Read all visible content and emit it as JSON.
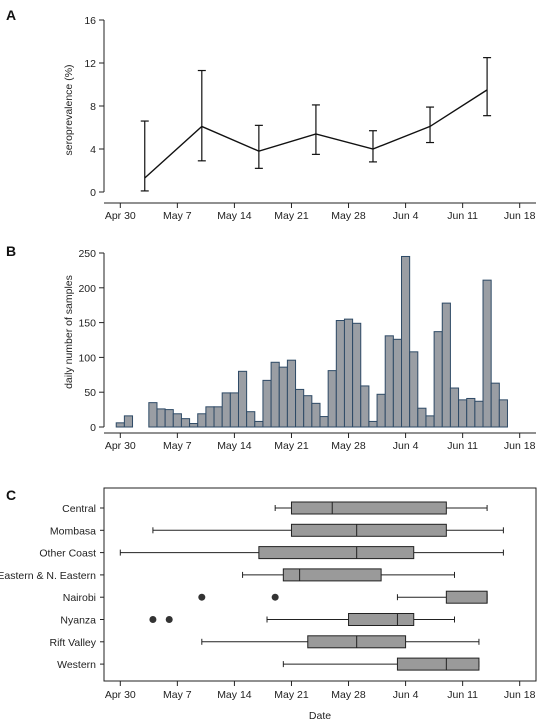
{
  "chart_data": [
    {
      "panel_label": "A",
      "type": "line",
      "ylabel": "seroprevalence (%)",
      "xlabel": "",
      "ylim": [
        0,
        16
      ],
      "yticks": [
        0,
        4,
        8,
        12,
        16
      ],
      "x_tick_labels": [
        "Apr 30",
        "May 7",
        "May 14",
        "May 21",
        "May 28",
        "Jun 4",
        "Jun 11",
        "Jun 18"
      ],
      "x_tick_dates": [
        "2020-04-30",
        "2020-05-07",
        "2020-05-14",
        "2020-05-21",
        "2020-05-28",
        "2020-06-04",
        "2020-06-11",
        "2020-06-18"
      ],
      "xlim": [
        "2020-04-28",
        "2020-06-20"
      ],
      "grid": false,
      "points": [
        {
          "x": "2020-05-03",
          "y": 1.3,
          "lo": 0.1,
          "hi": 6.6
        },
        {
          "x": "2020-05-10",
          "y": 6.1,
          "lo": 2.9,
          "hi": 11.3
        },
        {
          "x": "2020-05-17",
          "y": 3.8,
          "lo": 2.2,
          "hi": 6.2
        },
        {
          "x": "2020-05-24",
          "y": 5.4,
          "lo": 3.5,
          "hi": 8.1
        },
        {
          "x": "2020-05-31",
          "y": 4.0,
          "lo": 2.8,
          "hi": 5.7
        },
        {
          "x": "2020-06-07",
          "y": 6.1,
          "lo": 4.6,
          "hi": 7.9
        },
        {
          "x": "2020-06-14",
          "y": 9.5,
          "lo": 7.1,
          "hi": 12.5
        }
      ]
    },
    {
      "panel_label": "B",
      "type": "bar",
      "ylabel": "daily number of samples",
      "xlabel": "",
      "ylim": [
        0,
        250
      ],
      "yticks": [
        0,
        50,
        100,
        150,
        200,
        250
      ],
      "x_tick_labels": [
        "Apr 30",
        "May 7",
        "May 14",
        "May 21",
        "May 28",
        "Jun 4",
        "Jun 11",
        "Jun 18"
      ],
      "x_tick_dates": [
        "2020-04-30",
        "2020-05-07",
        "2020-05-14",
        "2020-05-21",
        "2020-05-28",
        "2020-06-04",
        "2020-06-11",
        "2020-06-18"
      ],
      "xlim": [
        "2020-04-28",
        "2020-06-20"
      ],
      "grid": false,
      "bars": [
        {
          "x": "2020-04-30",
          "y": 6
        },
        {
          "x": "2020-05-01",
          "y": 16
        },
        {
          "x": "2020-05-04",
          "y": 35
        },
        {
          "x": "2020-05-05",
          "y": 26
        },
        {
          "x": "2020-05-06",
          "y": 25
        },
        {
          "x": "2020-05-07",
          "y": 19
        },
        {
          "x": "2020-05-08",
          "y": 12
        },
        {
          "x": "2020-05-09",
          "y": 5
        },
        {
          "x": "2020-05-10",
          "y": 19
        },
        {
          "x": "2020-05-11",
          "y": 29
        },
        {
          "x": "2020-05-12",
          "y": 29
        },
        {
          "x": "2020-05-13",
          "y": 49
        },
        {
          "x": "2020-05-14",
          "y": 49
        },
        {
          "x": "2020-05-15",
          "y": 80
        },
        {
          "x": "2020-05-16",
          "y": 22
        },
        {
          "x": "2020-05-17",
          "y": 8
        },
        {
          "x": "2020-05-18",
          "y": 67
        },
        {
          "x": "2020-05-19",
          "y": 93
        },
        {
          "x": "2020-05-20",
          "y": 86
        },
        {
          "x": "2020-05-21",
          "y": 96
        },
        {
          "x": "2020-05-22",
          "y": 54
        },
        {
          "x": "2020-05-23",
          "y": 45
        },
        {
          "x": "2020-05-24",
          "y": 34
        },
        {
          "x": "2020-05-25",
          "y": 15
        },
        {
          "x": "2020-05-26",
          "y": 81
        },
        {
          "x": "2020-05-27",
          "y": 153
        },
        {
          "x": "2020-05-28",
          "y": 155
        },
        {
          "x": "2020-05-29",
          "y": 149
        },
        {
          "x": "2020-05-30",
          "y": 59
        },
        {
          "x": "2020-05-31",
          "y": 8
        },
        {
          "x": "2020-06-01",
          "y": 47
        },
        {
          "x": "2020-06-02",
          "y": 131
        },
        {
          "x": "2020-06-03",
          "y": 126
        },
        {
          "x": "2020-06-04",
          "y": 245
        },
        {
          "x": "2020-06-05",
          "y": 108
        },
        {
          "x": "2020-06-06",
          "y": 27
        },
        {
          "x": "2020-06-07",
          "y": 16
        },
        {
          "x": "2020-06-08",
          "y": 137
        },
        {
          "x": "2020-06-09",
          "y": 178
        },
        {
          "x": "2020-06-10",
          "y": 56
        },
        {
          "x": "2020-06-11",
          "y": 39
        },
        {
          "x": "2020-06-12",
          "y": 41
        },
        {
          "x": "2020-06-13",
          "y": 37
        },
        {
          "x": "2020-06-14",
          "y": 211
        },
        {
          "x": "2020-06-15",
          "y": 63
        },
        {
          "x": "2020-06-16",
          "y": 39
        }
      ]
    },
    {
      "panel_label": "C",
      "type": "box",
      "ylabel": "",
      "xlabel": "Date",
      "x_tick_labels": [
        "Apr 30",
        "May 7",
        "May 14",
        "May 21",
        "May 28",
        "Jun 4",
        "Jun 11",
        "Jun 18"
      ],
      "x_tick_dates": [
        "2020-04-30",
        "2020-05-07",
        "2020-05-14",
        "2020-05-21",
        "2020-05-28",
        "2020-06-04",
        "2020-06-11",
        "2020-06-18"
      ],
      "xlim": [
        "2020-04-28",
        "2020-06-20"
      ],
      "grid": false,
      "categories": [
        "Central",
        "Mombasa",
        "Other Coast",
        "Eastern & N. Eastern",
        "Nairobi",
        "Nyanza",
        "Rift Valley",
        "Western"
      ],
      "boxes": [
        {
          "name": "Central",
          "min": "2020-05-19",
          "q1": "2020-05-21",
          "median": "2020-05-26",
          "q3": "2020-06-09",
          "max": "2020-06-14",
          "outliers": []
        },
        {
          "name": "Mombasa",
          "min": "2020-05-04",
          "q1": "2020-05-21",
          "median": "2020-05-29",
          "q3": "2020-06-09",
          "max": "2020-06-16",
          "outliers": []
        },
        {
          "name": "Other Coast",
          "min": "2020-04-30",
          "q1": "2020-05-17",
          "median": "2020-05-29",
          "q3": "2020-06-05",
          "max": "2020-06-16",
          "outliers": []
        },
        {
          "name": "Eastern & N. Eastern",
          "min": "2020-05-15",
          "q1": "2020-05-20",
          "median": "2020-05-22",
          "q3": "2020-06-01",
          "max": "2020-06-10",
          "outliers": []
        },
        {
          "name": "Nairobi",
          "min": "2020-06-03",
          "q1": "2020-06-09",
          "median": "2020-06-14",
          "q3": "2020-06-14",
          "max": "2020-06-14",
          "outliers": [
            "2020-05-10",
            "2020-05-19"
          ]
        },
        {
          "name": "Nyanza",
          "min": "2020-05-18",
          "q1": "2020-05-28",
          "median": "2020-06-03",
          "q3": "2020-06-05",
          "max": "2020-06-10",
          "outliers": [
            "2020-05-04",
            "2020-05-06"
          ]
        },
        {
          "name": "Rift Valley",
          "min": "2020-05-10",
          "q1": "2020-05-23",
          "median": "2020-05-29",
          "q3": "2020-06-04",
          "max": "2020-06-13",
          "outliers": []
        },
        {
          "name": "Western",
          "min": "2020-05-20",
          "q1": "2020-06-03",
          "median": "2020-06-09",
          "q3": "2020-06-13",
          "max": "2020-06-13",
          "outliers": []
        }
      ]
    }
  ],
  "colors": {
    "bar_fill": "#9a9ea4",
    "bar_stroke": "#2e4a66",
    "box_fill": "#9a9a9a",
    "line": "#111111",
    "frame": "#222222"
  }
}
